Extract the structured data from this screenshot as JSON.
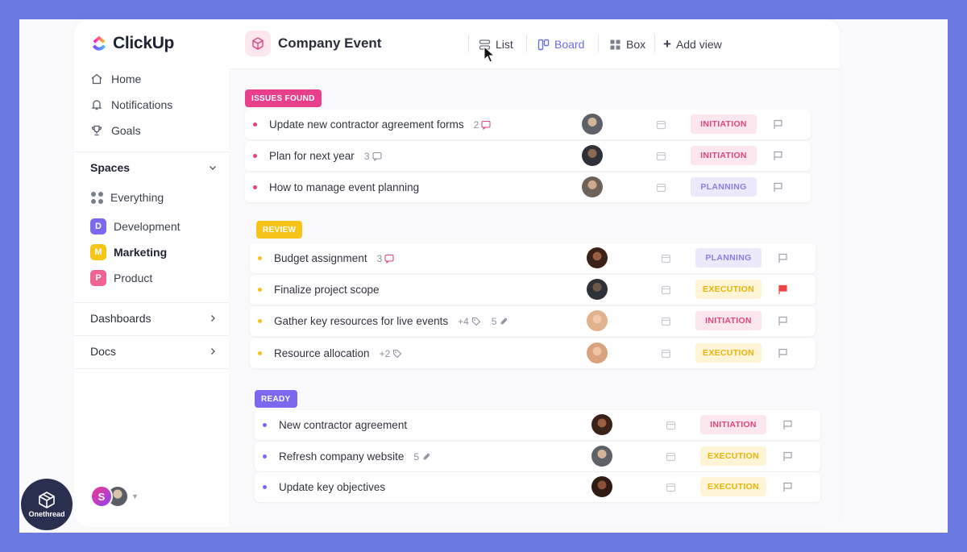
{
  "brand": {
    "name": "ClickUp"
  },
  "sidebar": {
    "nav": [
      {
        "label": "Home",
        "icon": "home-icon"
      },
      {
        "label": "Notifications",
        "icon": "bell-icon"
      },
      {
        "label": "Goals",
        "icon": "trophy-icon"
      }
    ],
    "spaces_title": "Spaces",
    "spaces": [
      {
        "label": "Everything",
        "badge": ""
      },
      {
        "label": "Development",
        "badge": "D",
        "color": "#7b68ee"
      },
      {
        "label": "Marketing",
        "badge": "M",
        "color": "#f5c518"
      },
      {
        "label": "Product",
        "badge": "P",
        "color": "#f06292"
      }
    ],
    "dashboards": "Dashboards",
    "docs": "Docs",
    "user_initial": "S"
  },
  "topbar": {
    "project": "Company Event",
    "views": [
      {
        "label": "List",
        "icon": "list-icon"
      },
      {
        "label": "Board",
        "icon": "board-icon"
      },
      {
        "label": "Box",
        "icon": "box-icon"
      }
    ],
    "add_view": "Add view"
  },
  "groups": [
    {
      "label": "ISSUES FOUND",
      "color": "#e83e8c",
      "tasks": [
        {
          "name": "Update new contractor agreement forms",
          "meta": "2",
          "meta_icon": "comment-icon",
          "status": "INITIATION",
          "avatar": "#6b6f78"
        },
        {
          "name": "Plan for next year",
          "meta": "3",
          "meta_icon": "comment-icon",
          "status": "INITIATION",
          "avatar": "#3a3d45"
        },
        {
          "name": "How to manage event planning",
          "meta": "",
          "meta_icon": "",
          "status": "PLANNING",
          "avatar": "#8a7a6e"
        }
      ]
    },
    {
      "label": "REVIEW",
      "color": "#f6c31a",
      "tasks": [
        {
          "name": "Budget assignment",
          "meta": "3",
          "meta_icon": "comment-icon",
          "status": "PLANNING",
          "avatar": "#7a4a34"
        },
        {
          "name": "Finalize project scope",
          "meta": "",
          "meta_icon": "",
          "status": "EXECUTION",
          "avatar": "#4a4f5a",
          "flag": "red"
        },
        {
          "name": "Gather key resources for live events",
          "meta": "+4",
          "meta_icon": "tag-icon",
          "meta2": "5",
          "meta2_icon": "paperclip-icon",
          "status": "INITIATION",
          "avatar": "#e8b79a"
        },
        {
          "name": "Resource allocation",
          "meta": "+2",
          "meta_icon": "tag-icon",
          "status": "EXECUTION",
          "avatar": "#e0a98a"
        }
      ]
    },
    {
      "label": "READY",
      "color": "#7b68ee",
      "tasks": [
        {
          "name": "New contractor agreement",
          "meta": "",
          "meta_icon": "",
          "status": "INITIATION",
          "avatar": "#7a4a34"
        },
        {
          "name": "Refresh company website",
          "meta": "5",
          "meta_icon": "paperclip-icon",
          "status": "EXECUTION",
          "avatar": "#6b6f78"
        },
        {
          "name": "Update key objectives",
          "meta": "",
          "meta_icon": "",
          "status": "EXECUTION",
          "avatar": "#5a3a2a"
        }
      ]
    }
  ],
  "watermark": {
    "text": "Onethread"
  }
}
